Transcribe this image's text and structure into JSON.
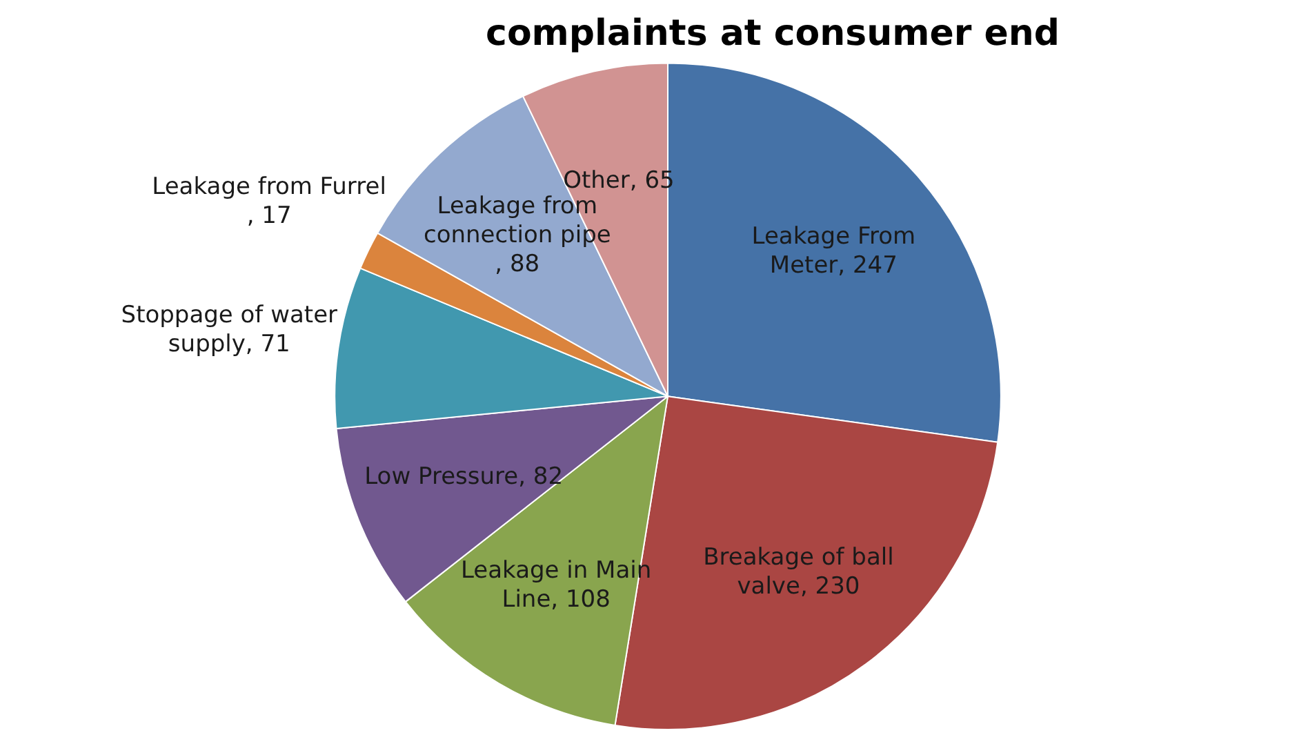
{
  "chart_data": {
    "type": "pie",
    "title": "complaints at consumer end",
    "categories": [
      "Leakage From Meter",
      "Breakage of ball valve",
      "Leakage in Main Line",
      "Low Pressure",
      "Stoppage of water supply",
      "Leakage from Furrel",
      "Leakage from connection pipe",
      "Other"
    ],
    "values": [
      247,
      230,
      108,
      82,
      71,
      17,
      88,
      65
    ],
    "colors": [
      "#4572a7",
      "#aa4643",
      "#89a54e",
      "#71588f",
      "#4198af",
      "#db843d",
      "#93a9cf",
      "#d19392"
    ],
    "value_labels": [
      ", 247",
      ", 230",
      ", 108",
      ", 82",
      ", 71",
      ", 17",
      ", 88",
      ", 65"
    ],
    "legend": false
  }
}
